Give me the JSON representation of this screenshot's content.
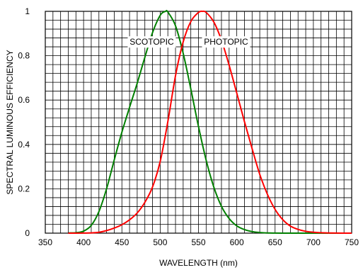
{
  "chart_data": {
    "type": "line",
    "title": "",
    "xlabel": "WAVELENGTH (nm)",
    "ylabel": "SPECTRAL LUMINOUS EFFICIENCY",
    "xlim": [
      350,
      750
    ],
    "ylim": [
      0,
      1
    ],
    "x_ticks": [
      350,
      400,
      450,
      500,
      550,
      600,
      650,
      700,
      750
    ],
    "y_ticks": [
      0,
      0.2,
      0.4,
      0.6,
      0.8,
      1
    ],
    "y_tick_labels": [
      "0",
      "0.2",
      "0.4",
      "0.6",
      "0.8",
      "1"
    ],
    "grid": true,
    "grid_minor_x_step": 10,
    "grid_minor_y_step": 0.04,
    "series": [
      {
        "name": "SCOTOPIC",
        "color": "#008000",
        "x": [
          380,
          390,
          400,
          410,
          420,
          430,
          440,
          450,
          460,
          470,
          480,
          490,
          500,
          507,
          510,
          520,
          530,
          540,
          550,
          560,
          570,
          580,
          590,
          600,
          610,
          620,
          630,
          640,
          650,
          660,
          670,
          680,
          690,
          700,
          710,
          720,
          730,
          740,
          750
        ],
        "values": [
          0.001,
          0.002,
          0.009,
          0.035,
          0.097,
          0.2,
          0.33,
          0.455,
          0.567,
          0.676,
          0.793,
          0.904,
          0.982,
          1.0,
          0.997,
          0.935,
          0.811,
          0.65,
          0.481,
          0.329,
          0.208,
          0.121,
          0.066,
          0.033,
          0.016,
          0.007,
          0.003,
          0.001,
          0.0005,
          0.0002,
          0.0001,
          0,
          0,
          0,
          0,
          0,
          0,
          0,
          0
        ]
      },
      {
        "name": "PHOTOPIC",
        "color": "#ff0000",
        "x": [
          380,
          390,
          400,
          410,
          420,
          430,
          440,
          450,
          460,
          470,
          480,
          490,
          500,
          510,
          520,
          530,
          540,
          550,
          555,
          560,
          570,
          580,
          590,
          600,
          610,
          620,
          630,
          640,
          650,
          660,
          670,
          680,
          690,
          700,
          710,
          720,
          730,
          740,
          750
        ],
        "values": [
          0.0,
          0.0001,
          0.0004,
          0.0012,
          0.004,
          0.0116,
          0.023,
          0.038,
          0.06,
          0.091,
          0.139,
          0.208,
          0.323,
          0.503,
          0.71,
          0.862,
          0.954,
          0.995,
          1.0,
          0.995,
          0.952,
          0.87,
          0.757,
          0.631,
          0.503,
          0.381,
          0.265,
          0.175,
          0.107,
          0.061,
          0.032,
          0.017,
          0.0082,
          0.0041,
          0.0021,
          0.001,
          0.0005,
          0.0002,
          0.0001
        ]
      }
    ],
    "annotations": [
      {
        "text": "SCOTOPIC",
        "x": 489,
        "y": 0.862
      },
      {
        "text": "PHOTOPIC",
        "x": 586,
        "y": 0.862
      }
    ]
  }
}
